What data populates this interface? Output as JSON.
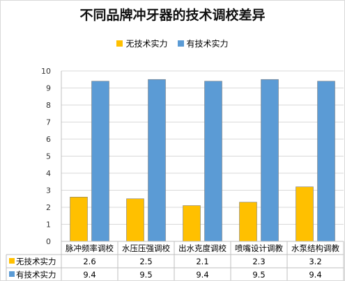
{
  "chart_data": {
    "type": "bar",
    "title": "不同品牌冲牙器的技术调校差异",
    "categories": [
      "脉冲频率调校",
      "水压压强调校",
      "出水克度调校",
      "喷嘴设计调教",
      "水泵结构调教"
    ],
    "series": [
      {
        "name": "无技术实力",
        "values": [
          2.6,
          2.5,
          2.1,
          2.3,
          3.2
        ]
      },
      {
        "name": "有技术实力",
        "values": [
          9.4,
          9.5,
          9.4,
          9.5,
          9.4
        ]
      }
    ],
    "value_labels": [
      [
        "2.6",
        "2.5",
        "2.1",
        "2.3",
        "3.2"
      ],
      [
        "9.4",
        "9.5",
        "9.4",
        "9.5",
        "9.4"
      ]
    ],
    "yticks": [
      "0",
      "1",
      "2",
      "3",
      "4",
      "5",
      "6",
      "7",
      "8",
      "9",
      "10"
    ],
    "ylim": [
      0,
      10
    ],
    "grid": true,
    "legend_position": "top",
    "data_table": true,
    "colors": [
      "#FFC000",
      "#5B9BD5"
    ]
  }
}
